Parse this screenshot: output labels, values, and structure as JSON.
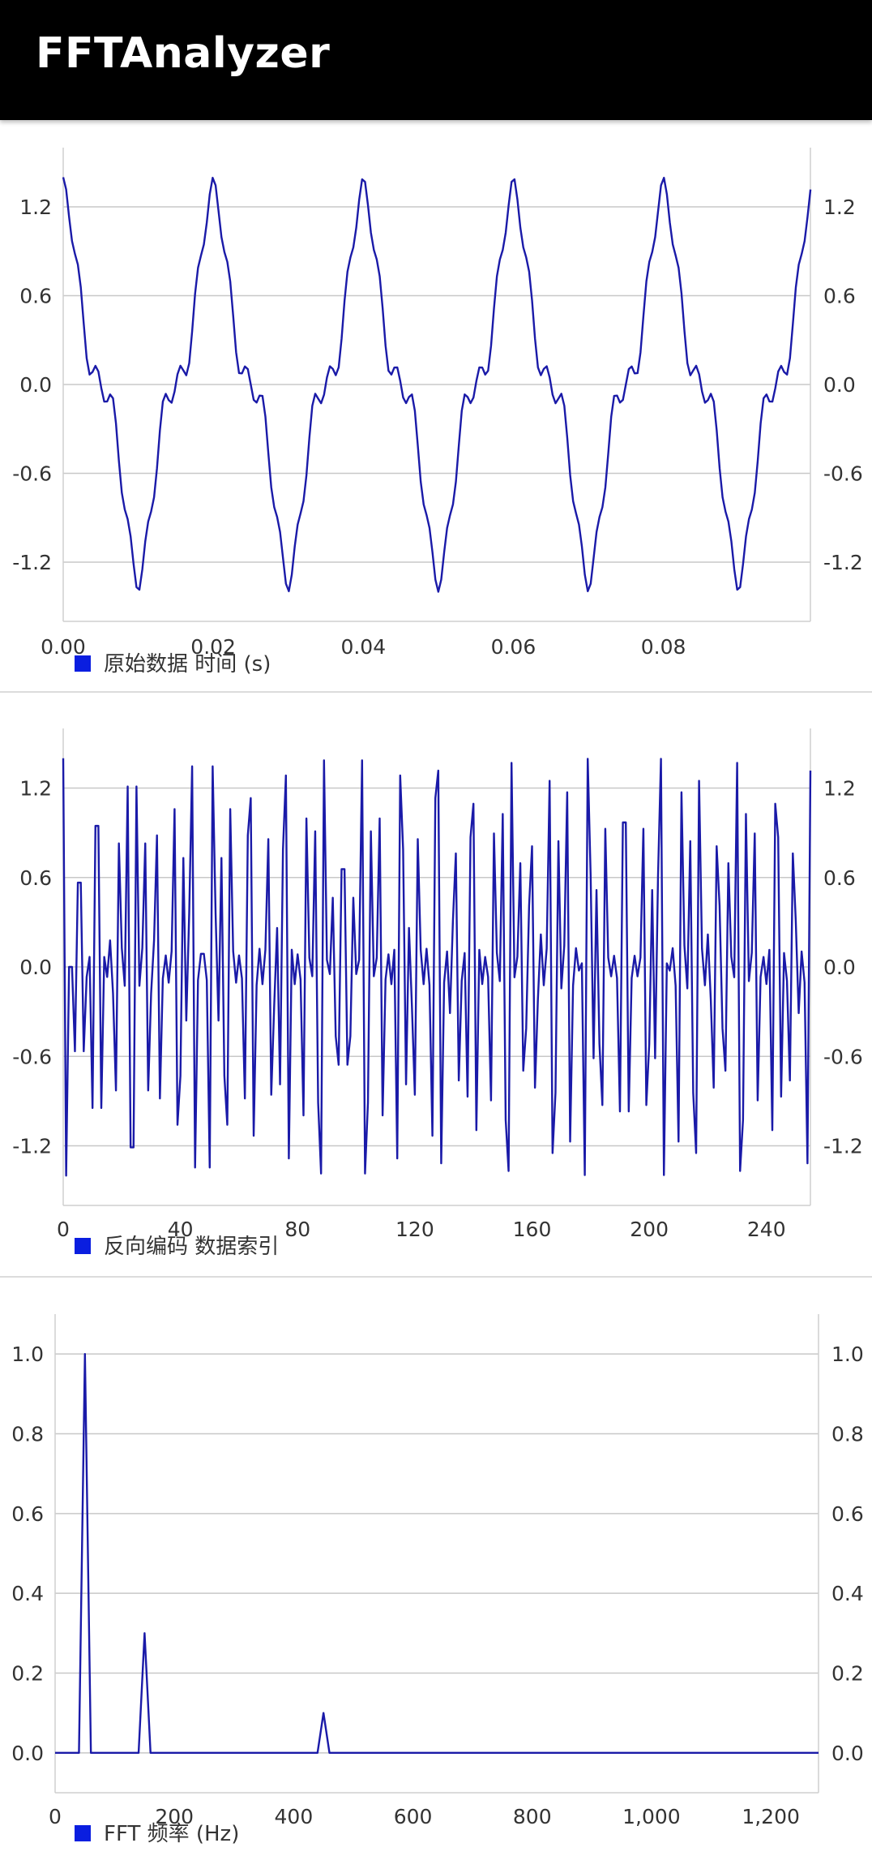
{
  "app": {
    "title": "FFTAnalyzer"
  },
  "colors": {
    "series": "#1a1aa8",
    "legend_swatch": "#0a1ee0",
    "grid": "#c8c8c8",
    "frame": "#cfcfcf"
  },
  "chart_data": [
    {
      "type": "line",
      "legend": "原始数据 时间 (s)",
      "x_ticks": [
        "0.00",
        "0.02",
        "0.04",
        "0.06",
        "0.08"
      ],
      "y_ticks": [
        "1.2",
        "0.6",
        "0.0",
        "-0.6",
        "-1.2"
      ],
      "xlim": [
        0,
        0.0996
      ],
      "ylim": [
        -1.6,
        1.6
      ],
      "series": [
        {
          "signal": "sum_of_sines",
          "components": [
            {
              "amplitude": 1.0,
              "frequency_hz": 50
            },
            {
              "amplitude": 0.3,
              "frequency_hz": 150
            },
            {
              "amplitude": 0.1,
              "frequency_hz": 450
            }
          ],
          "sample_rate_hz": 2560,
          "samples": 256
        }
      ]
    },
    {
      "type": "line",
      "legend": "反向编码 数据索引",
      "x_ticks": [
        "0",
        "40",
        "80",
        "120",
        "160",
        "200",
        "240"
      ],
      "y_ticks": [
        "1.2",
        "0.6",
        "0.0",
        "-0.6",
        "-1.2"
      ],
      "xlim": [
        0,
        255
      ],
      "ylim": [
        -1.6,
        1.6
      ],
      "series": [
        {
          "signal": "bit_reversed_reordering",
          "source": "chart_data.0",
          "samples": 256
        }
      ]
    },
    {
      "type": "line",
      "legend": "FFT 频率 (Hz)",
      "x_ticks": [
        "0",
        "200",
        "400",
        "600",
        "800",
        "1,000",
        "1,200"
      ],
      "y_ticks": [
        "1.0",
        "0.8",
        "0.6",
        "0.4",
        "0.2",
        "0.0"
      ],
      "xlim": [
        0,
        1280
      ],
      "ylim": [
        -0.1,
        1.1
      ],
      "series": [
        {
          "x": [
            0,
            40,
            50,
            60,
            140,
            150,
            160,
            440,
            450,
            460,
            1280
          ],
          "y": [
            0,
            0,
            1.0,
            0,
            0,
            0.3,
            0,
            0,
            0.1,
            0,
            0
          ]
        }
      ]
    }
  ]
}
